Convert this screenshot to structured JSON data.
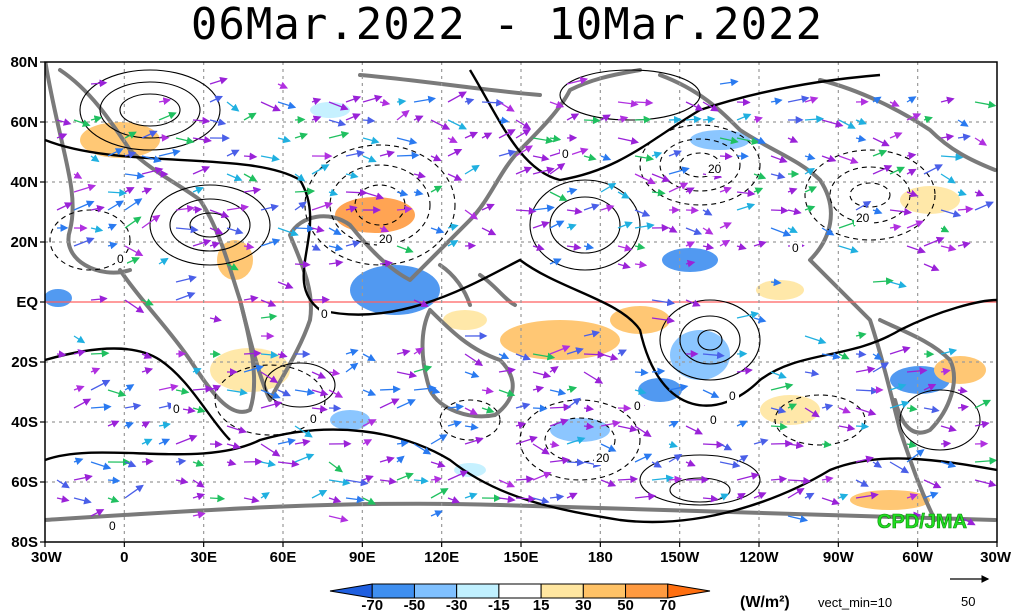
{
  "title": "06Mar.2022 - 10Mar.2022",
  "lat_labels": [
    "80N",
    "60N",
    "40N",
    "20N",
    "EQ",
    "20S",
    "40S",
    "60S",
    "80S"
  ],
  "lon_labels": [
    "30W",
    "0",
    "30E",
    "60E",
    "90E",
    "120E",
    "150E",
    "180",
    "150W",
    "120W",
    "90W",
    "60W",
    "30W"
  ],
  "colorbar": {
    "levels": [
      "-70",
      "-50",
      "-30",
      "-15",
      "15",
      "30",
      "50",
      "70"
    ],
    "colors": [
      "#1f5fe0",
      "#3f8ff0",
      "#7fc0ff",
      "#c0f0ff",
      "#ffffff",
      "#ffe6a0",
      "#ffc266",
      "#ff9a40",
      "#ff6f10"
    ],
    "unit": "(W/m²)"
  },
  "vector_note": "vect_min=10",
  "reference_vector": "50",
  "contour_labels": [
    "0",
    "0",
    "0",
    "0",
    "0",
    "0",
    "0",
    "0",
    "0",
    "0",
    "20",
    "20",
    "20",
    "20"
  ],
  "credit": "CPD/JMA"
}
